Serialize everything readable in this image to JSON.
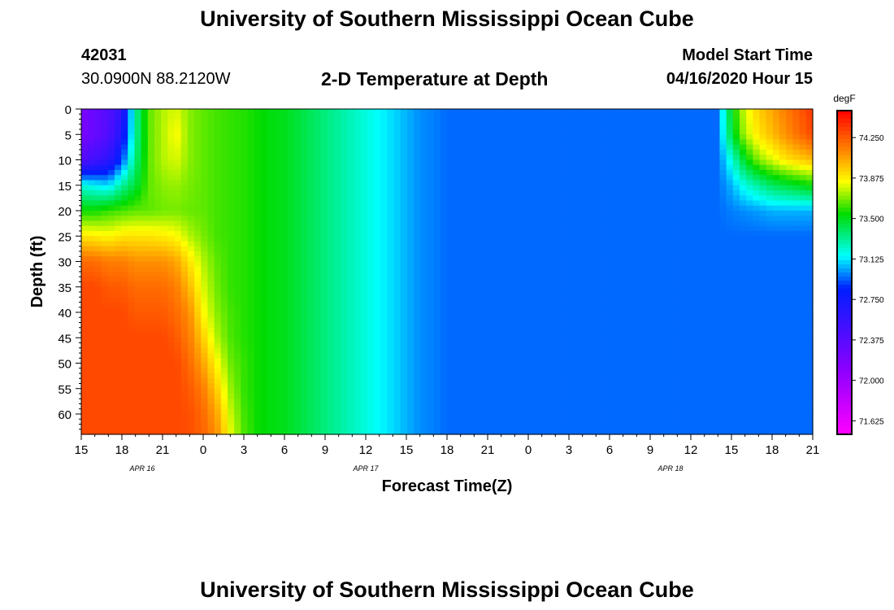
{
  "header": {
    "title_top": "University of Southern Mississippi Ocean Cube",
    "station_id": "42031",
    "coordinates": "30.0900N 88.2120W",
    "plot_title": "2-D Temperature at Depth",
    "model_start_label": "Model Start Time",
    "model_start_value": "04/16/2020 Hour 15",
    "title_bottom": "University of Southern Mississippi Ocean Cube"
  },
  "chart_data": {
    "type": "heatmap",
    "title": "2-D Temperature at Depth",
    "xlabel": "Forecast Time(Z)",
    "ylabel": "Depth (ft)",
    "x_tick_labels": [
      "15",
      "18",
      "21",
      "0",
      "3",
      "6",
      "9",
      "12",
      "15",
      "18",
      "21",
      "0",
      "3",
      "6",
      "9",
      "12",
      "15",
      "18",
      "21"
    ],
    "x_tick_hours": [
      0,
      3,
      6,
      9,
      12,
      15,
      18,
      21,
      24,
      27,
      30,
      33,
      36,
      39,
      42,
      45,
      48,
      51,
      54
    ],
    "date_labels": [
      {
        "text": "APR 16",
        "hour": 4.5
      },
      {
        "text": "APR 17",
        "hour": 21
      },
      {
        "text": "APR 18",
        "hour": 43.5
      }
    ],
    "x_range_hours": [
      0,
      54
    ],
    "y_tick_labels": [
      "0",
      "5",
      "10",
      "15",
      "20",
      "25",
      "30",
      "35",
      "40",
      "45",
      "50",
      "55",
      "60"
    ],
    "y_ticks": [
      0,
      5,
      10,
      15,
      20,
      25,
      30,
      35,
      40,
      45,
      50,
      55,
      60
    ],
    "ylim": [
      0,
      64
    ],
    "y_inverted": true,
    "colorbar": {
      "unit": "degF",
      "range": [
        71.5,
        74.5
      ],
      "tick_labels": [
        "74.250",
        "73.875",
        "73.500",
        "73.125",
        "72.750",
        "72.375",
        "72.000",
        "71.625"
      ],
      "ticks": [
        74.25,
        73.875,
        73.5,
        73.125,
        72.75,
        72.375,
        72.0,
        71.625
      ]
    },
    "grid": false,
    "depth_levels_ft": [
      0,
      5,
      10,
      15,
      20,
      25,
      30,
      35,
      40,
      45,
      50,
      55,
      60,
      64
    ],
    "times_hours": [
      0,
      1,
      2,
      3,
      4,
      5,
      6,
      7,
      8,
      9,
      10,
      11,
      12,
      13,
      14,
      15,
      16,
      17,
      18,
      19,
      20,
      21,
      22,
      23,
      24,
      25,
      26,
      27,
      28,
      29,
      30,
      31,
      32,
      33,
      34,
      35,
      36,
      37,
      38,
      39,
      40,
      41,
      42,
      43,
      44,
      45,
      46,
      47,
      48,
      49,
      50,
      51,
      52,
      53,
      54
    ],
    "temperature_degF": [
      [
        72.2,
        72.3,
        72.4,
        72.6,
        73.3,
        73.65,
        73.75,
        73.8,
        73.7,
        73.65,
        73.62,
        73.6,
        73.58,
        73.55,
        73.52,
        73.5,
        73.45,
        73.4,
        73.35,
        73.3,
        73.25,
        73.2,
        73.15,
        73.1,
        73.05,
        73.0,
        72.98,
        72.95,
        72.95,
        72.95,
        72.95,
        72.95,
        72.95,
        72.95,
        72.95,
        72.95,
        72.95,
        72.95,
        72.95,
        72.95,
        72.95,
        72.95,
        72.95,
        72.95,
        72.95,
        72.95,
        72.95,
        72.95,
        73.5,
        73.8,
        73.95,
        74.05,
        74.15,
        74.25,
        74.35
      ],
      [
        72.2,
        72.3,
        72.4,
        72.7,
        73.3,
        73.65,
        73.75,
        73.85,
        73.7,
        73.65,
        73.62,
        73.6,
        73.58,
        73.55,
        73.52,
        73.5,
        73.45,
        73.4,
        73.35,
        73.3,
        73.25,
        73.2,
        73.15,
        73.1,
        73.05,
        73.0,
        72.98,
        72.95,
        72.95,
        72.95,
        72.95,
        72.95,
        72.95,
        72.95,
        72.95,
        72.95,
        72.95,
        72.95,
        72.95,
        72.95,
        72.95,
        72.95,
        72.95,
        72.95,
        72.95,
        72.95,
        72.95,
        72.95,
        73.45,
        73.75,
        73.9,
        74.0,
        74.1,
        74.2,
        74.3
      ],
      [
        72.4,
        72.5,
        72.6,
        72.9,
        73.35,
        73.65,
        73.75,
        73.8,
        73.7,
        73.65,
        73.62,
        73.6,
        73.58,
        73.55,
        73.52,
        73.5,
        73.45,
        73.4,
        73.35,
        73.3,
        73.25,
        73.2,
        73.15,
        73.1,
        73.05,
        73.0,
        72.98,
        72.95,
        72.95,
        72.95,
        72.95,
        72.95,
        72.95,
        72.95,
        72.95,
        72.95,
        72.95,
        72.95,
        72.95,
        72.95,
        72.95,
        72.95,
        72.95,
        72.95,
        72.95,
        72.95,
        72.95,
        72.95,
        73.2,
        73.5,
        73.7,
        73.8,
        73.9,
        73.95,
        74.0
      ],
      [
        73.2,
        73.15,
        73.1,
        73.3,
        73.45,
        73.65,
        73.7,
        73.72,
        73.68,
        73.65,
        73.62,
        73.6,
        73.58,
        73.55,
        73.52,
        73.5,
        73.45,
        73.4,
        73.35,
        73.3,
        73.25,
        73.2,
        73.15,
        73.1,
        73.05,
        73.0,
        72.98,
        72.95,
        72.95,
        72.95,
        72.95,
        72.95,
        72.95,
        72.95,
        72.95,
        72.95,
        72.95,
        72.95,
        72.95,
        72.95,
        72.95,
        72.95,
        72.95,
        72.95,
        72.95,
        72.95,
        72.95,
        72.95,
        73.05,
        73.2,
        73.3,
        73.4,
        73.45,
        73.5,
        73.55
      ],
      [
        73.55,
        73.55,
        73.6,
        73.62,
        73.65,
        73.65,
        73.67,
        73.68,
        73.66,
        73.65,
        73.62,
        73.6,
        73.58,
        73.55,
        73.52,
        73.5,
        73.45,
        73.4,
        73.35,
        73.3,
        73.25,
        73.2,
        73.15,
        73.1,
        73.05,
        73.0,
        72.98,
        72.95,
        72.95,
        72.95,
        72.95,
        72.95,
        72.95,
        72.95,
        72.95,
        72.95,
        72.95,
        72.95,
        72.95,
        72.95,
        72.95,
        72.95,
        72.95,
        72.95,
        72.95,
        72.95,
        72.95,
        72.95,
        72.98,
        73.0,
        73.02,
        73.05,
        73.05,
        73.05,
        73.05
      ],
      [
        73.9,
        73.88,
        73.85,
        73.9,
        73.9,
        73.9,
        73.88,
        73.85,
        73.75,
        73.68,
        73.62,
        73.6,
        73.58,
        73.55,
        73.52,
        73.5,
        73.45,
        73.4,
        73.35,
        73.3,
        73.25,
        73.2,
        73.15,
        73.1,
        73.05,
        73.0,
        72.98,
        72.95,
        72.95,
        72.95,
        72.95,
        72.95,
        72.95,
        72.95,
        72.95,
        72.95,
        72.95,
        72.95,
        72.95,
        72.95,
        72.95,
        72.95,
        72.95,
        72.95,
        72.95,
        72.95,
        72.95,
        72.95,
        72.95,
        72.95,
        72.95,
        72.95,
        72.95,
        72.95,
        72.95
      ],
      [
        74.2,
        74.2,
        74.15,
        74.15,
        74.1,
        74.1,
        74.1,
        74.05,
        73.9,
        73.75,
        73.65,
        73.6,
        73.58,
        73.55,
        73.52,
        73.5,
        73.45,
        73.4,
        73.35,
        73.3,
        73.25,
        73.2,
        73.15,
        73.1,
        73.05,
        73.0,
        72.98,
        72.95,
        72.95,
        72.95,
        72.95,
        72.95,
        72.95,
        72.95,
        72.95,
        72.95,
        72.95,
        72.95,
        72.95,
        72.95,
        72.95,
        72.95,
        72.95,
        72.95,
        72.95,
        72.95,
        72.95,
        72.95,
        72.95,
        72.95,
        72.95,
        72.95,
        72.95,
        72.95,
        72.95
      ],
      [
        74.3,
        74.3,
        74.25,
        74.25,
        74.2,
        74.2,
        74.2,
        74.15,
        74.0,
        73.8,
        73.67,
        73.6,
        73.58,
        73.55,
        73.52,
        73.5,
        73.45,
        73.4,
        73.35,
        73.3,
        73.25,
        73.2,
        73.15,
        73.1,
        73.05,
        73.0,
        72.98,
        72.95,
        72.95,
        72.95,
        72.95,
        72.95,
        72.95,
        72.95,
        72.95,
        72.95,
        72.95,
        72.95,
        72.95,
        72.95,
        72.95,
        72.95,
        72.95,
        72.95,
        72.95,
        72.95,
        72.95,
        72.95,
        72.95,
        72.95,
        72.95,
        72.95,
        72.95,
        72.95,
        72.95
      ],
      [
        74.3,
        74.3,
        74.3,
        74.3,
        74.25,
        74.25,
        74.25,
        74.2,
        74.1,
        73.85,
        73.7,
        73.62,
        73.58,
        73.55,
        73.52,
        73.5,
        73.45,
        73.4,
        73.35,
        73.3,
        73.25,
        73.2,
        73.15,
        73.1,
        73.05,
        73.0,
        72.98,
        72.95,
        72.95,
        72.95,
        72.95,
        72.95,
        72.95,
        72.95,
        72.95,
        72.95,
        72.95,
        72.95,
        72.95,
        72.95,
        72.95,
        72.95,
        72.95,
        72.95,
        72.95,
        72.95,
        72.95,
        72.95,
        72.95,
        72.95,
        72.95,
        72.95,
        72.95,
        72.95,
        72.95
      ],
      [
        74.3,
        74.3,
        74.3,
        74.3,
        74.3,
        74.3,
        74.3,
        74.25,
        74.15,
        73.95,
        73.75,
        73.63,
        73.58,
        73.55,
        73.52,
        73.5,
        73.45,
        73.4,
        73.35,
        73.3,
        73.25,
        73.2,
        73.15,
        73.1,
        73.05,
        73.0,
        72.98,
        72.95,
        72.95,
        72.95,
        72.95,
        72.95,
        72.95,
        72.95,
        72.95,
        72.95,
        72.95,
        72.95,
        72.95,
        72.95,
        72.95,
        72.95,
        72.95,
        72.95,
        72.95,
        72.95,
        72.95,
        72.95,
        72.95,
        72.95,
        72.95,
        72.95,
        72.95,
        72.95,
        72.95
      ],
      [
        74.3,
        74.3,
        74.3,
        74.3,
        74.3,
        74.3,
        74.3,
        74.3,
        74.2,
        74.05,
        73.85,
        73.67,
        73.6,
        73.55,
        73.52,
        73.5,
        73.45,
        73.4,
        73.35,
        73.3,
        73.25,
        73.2,
        73.15,
        73.1,
        73.05,
        73.0,
        72.98,
        72.95,
        72.95,
        72.95,
        72.95,
        72.95,
        72.95,
        72.95,
        72.95,
        72.95,
        72.95,
        72.95,
        72.95,
        72.95,
        72.95,
        72.95,
        72.95,
        72.95,
        72.95,
        72.95,
        72.95,
        72.95,
        72.95,
        72.95,
        72.95,
        72.95,
        72.95,
        72.95,
        72.95
      ],
      [
        74.3,
        74.3,
        74.3,
        74.3,
        74.3,
        74.3,
        74.3,
        74.3,
        74.25,
        74.15,
        73.95,
        73.72,
        73.6,
        73.55,
        73.52,
        73.5,
        73.45,
        73.4,
        73.35,
        73.3,
        73.25,
        73.2,
        73.15,
        73.1,
        73.05,
        73.0,
        72.98,
        72.95,
        72.95,
        72.95,
        72.95,
        72.95,
        72.95,
        72.95,
        72.95,
        72.95,
        72.95,
        72.95,
        72.95,
        72.95,
        72.95,
        72.95,
        72.95,
        72.95,
        72.95,
        72.95,
        72.95,
        72.95,
        72.95,
        72.95,
        72.95,
        72.95,
        72.95,
        72.95,
        72.95
      ],
      [
        74.3,
        74.3,
        74.3,
        74.3,
        74.3,
        74.3,
        74.3,
        74.3,
        74.28,
        74.2,
        74.05,
        73.78,
        73.62,
        73.55,
        73.52,
        73.5,
        73.45,
        73.4,
        73.35,
        73.3,
        73.25,
        73.2,
        73.15,
        73.1,
        73.05,
        73.0,
        72.98,
        72.95,
        72.95,
        72.95,
        72.95,
        72.95,
        72.95,
        72.95,
        72.95,
        72.95,
        72.95,
        72.95,
        72.95,
        72.95,
        72.95,
        72.95,
        72.95,
        72.95,
        72.95,
        72.95,
        72.95,
        72.95,
        72.95,
        72.95,
        72.95,
        72.95,
        72.95,
        72.95,
        72.95
      ],
      [
        74.3,
        74.3,
        74.3,
        74.3,
        74.3,
        74.3,
        74.3,
        74.3,
        74.28,
        74.22,
        74.1,
        73.82,
        73.63,
        73.55,
        73.52,
        73.5,
        73.45,
        73.4,
        73.35,
        73.3,
        73.25,
        73.2,
        73.15,
        73.1,
        73.05,
        73.0,
        72.98,
        72.95,
        72.95,
        72.95,
        72.95,
        72.95,
        72.95,
        72.95,
        72.95,
        72.95,
        72.95,
        72.95,
        72.95,
        72.95,
        72.95,
        72.95,
        72.95,
        72.95,
        72.95,
        72.95,
        72.95,
        72.95,
        72.95,
        72.95,
        72.95,
        72.95,
        72.95,
        72.95,
        72.95
      ]
    ]
  }
}
